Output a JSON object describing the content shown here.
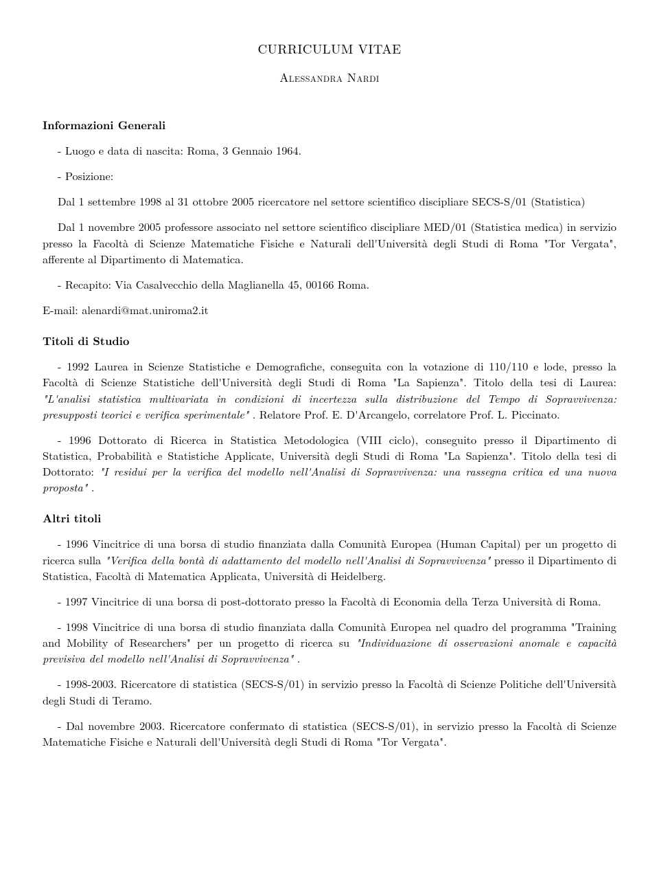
{
  "title": "CURRICULUM VITAE",
  "author": "Alessandra Nardi",
  "sections": {
    "info": {
      "heading": "Informazioni Generali",
      "p1": "- Luogo e data di nascita: Roma, 3 Gennaio 1964.",
      "p2": "- Posizione:",
      "p2a": "Dal 1 settembre 1998 al 31 ottobre 2005 ricercatore nel settore scientifico discipliare SECS-S/01 (Statistica)",
      "p2b": "Dal 1 novembre 2005 professore associato nel settore scientifico discipliare MED/01 (Statistica medica) in servizio presso la Facoltà di Scienze Matematiche Fisiche e Naturali dell'Università degli Studi di Roma \"Tor Vergata\", afferente al Dipartimento di Matematica.",
      "p3": "- Recapito: Via Casalvecchio della Maglianella 45, 00166 Roma.",
      "p3b": "E-mail: alenardi@mat.uniroma2.it"
    },
    "titoli": {
      "heading": "Titoli di Studio",
      "p1a": "- 1992 Laurea in Scienze Statistiche e Demografiche, conseguita con la votazione di 110/110 e lode, presso la Facoltà di Scienze Statistiche dell'Università degli Studi di Roma \"La Sapienza\". Titolo della tesi di Laurea: ",
      "p1i": "\"L'analisi statistica multivariata in condizioni di incertezza sulla distribuzione del Tempo di Sopravvivenza: presupposti teorici e verifica sperimentale\"",
      "p1b": ". Relatore Prof. E. D'Arcangelo, correlatore Prof. L. Piccinato.",
      "p2a": "- 1996 Dottorato di Ricerca in Statistica Metodologica (VIII ciclo), conseguito presso il Dipartimento di Statistica, Probabilità e Statistiche Applicate, Università degli Studi di Roma \"La Sapienza\". Titolo della tesi di Dottorato: ",
      "p2i": "\"I residui per la verifica del modello nell'Analisi di Sopravvivenza: una rassegna critica ed una nuova proposta\"",
      "p2b": "."
    },
    "altri": {
      "heading": "Altri titoli",
      "p1a": "- 1996 Vincitrice di una borsa di studio finanziata dalla Comunità Europea (Human Capital) per un progetto di ricerca sulla ",
      "p1i": "\"Verifica della bontà di adattamento del modello nell'Analisi di Sopravvivenza\"",
      "p1b": " presso il Dipartimento di Statistica, Facoltà di Matematica Applicata, Università di Heidelberg.",
      "p2": "- 1997 Vincitrice di una borsa di post-dottorato presso la Facoltà di Economia della Terza Università di Roma.",
      "p3a": "- 1998 Vincitrice di una borsa di studio finanziata dalla Comunità Europea nel quadro del programma \"Training and Mobility of Researchers\" per un progetto di ricerca su ",
      "p3i": "\"Individuazione di osservazioni anomale e capacità previsiva del modello nell'Analisi di Sopravvivenza\"",
      "p3b": ".",
      "p4": "- 1998-2003. Ricercatore di statistica (SECS-S/01) in servizio presso la Facoltà di Scienze Politiche dell'Università degli Studi di Teramo.",
      "p5": "- Dal novembre 2003. Ricercatore confermato di statistica (SECS-S/01), in servizio presso la Facoltà di Scienze Matematiche Fisiche e Naturali dell'Università degli Studi di Roma \"Tor Vergata\"."
    }
  }
}
